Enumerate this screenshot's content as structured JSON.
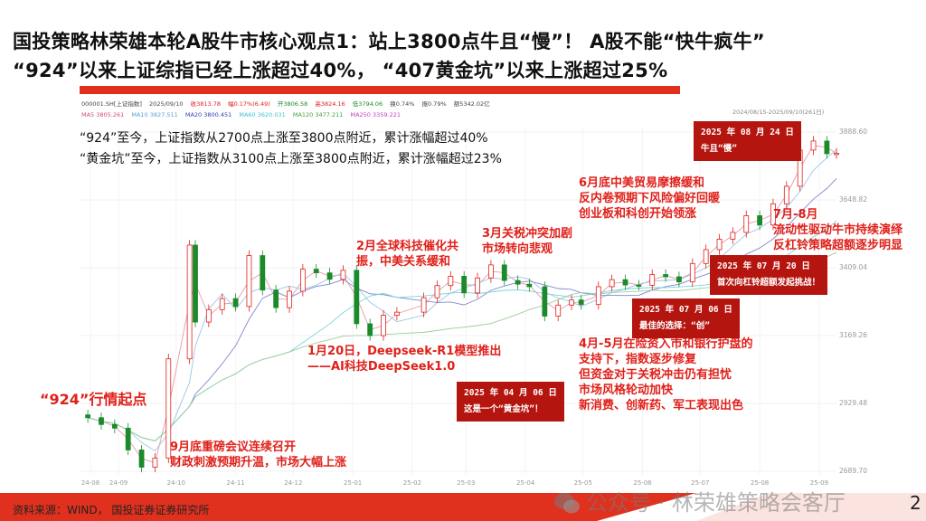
{
  "title": {
    "line1": "国投策略林荣雄本轮A股牛市核心观点1：站上3800点牛且“慢”！ A股不能“快牛疯牛”",
    "line2": "“924”以来上证综指已经上涨超过40%，  “407黄金坑”以来上涨超过25%"
  },
  "quote_info": {
    "row1": [
      "000001.SH[上证指数]",
      "2025/09/10",
      "收3813.78",
      "幅0.17%(6.49)",
      "开3806.58",
      "高3824.16",
      "低3794.06",
      "换0.74%",
      "振0.79%",
      "额5342.02亿"
    ],
    "row2": [
      "MA5 3805.261",
      "MA10 3827.511",
      "MA20 3800.451",
      "MA60 3620.031",
      "MA120 3477.211",
      "MA250 3359.221"
    ],
    "range": "2024/08/15-2025/09/10(261日)"
  },
  "summary": {
    "line1": "“924”至今，上证指数从2700点上涨至3800点附近，累计涨幅超过40%",
    "line2": "“黄金坑”至今，上证指数从3100点上涨至3800点附近，累计涨幅超过23%"
  },
  "annotations": {
    "start_924": "“924”行情起点",
    "sep": [
      "9月底重磅会议连续召开",
      "财政刺激预期升温，市场大幅上涨"
    ],
    "jan": [
      "1月20日，Deepseek-R1模型推出",
      "——AI科技DeepSeek1.0"
    ],
    "feb": [
      "2月全球科技催化共",
      "振，中美关系缓和"
    ],
    "mar": [
      "3月关税冲突加剧",
      "市场转向悲观"
    ],
    "apr_may": [
      "4月-5月在险资入市和银行护盘的",
      "支持下，指数逐步修复",
      "但资金对于关税冲击仍有担忧",
      "市场风格轮动加快",
      "新消费、创新药、军工表现出色"
    ],
    "jun": [
      "6月底中美贸易摩擦缓和",
      "反内卷预期下风险偏好回暖",
      "创业板和科创开始领涨"
    ],
    "jul_aug": [
      "7月-8月",
      "流动性驱动牛市持续演绎",
      "反杠铃策略超额逐步明显"
    ]
  },
  "boxes": {
    "b0406": [
      "2025 年 04 月 06 日",
      "这是一个“黄金坑”！"
    ],
    "b0706": [
      "2025 年 07 月 06 日",
      "最佳的选择：“创”"
    ],
    "b0720": [
      "2025 年 07 月 20 日",
      "首次向杠铃超额发起挑战！"
    ],
    "b0824": [
      "2025 年 08 月 24 日",
      "牛且“慢”"
    ]
  },
  "footer": {
    "source": "资料来源：WIND，  国投证券证券研究所",
    "page": "2",
    "watermark": "公众号 · 林荣雄策略会客厅"
  },
  "colors": {
    "up": "#e0201a",
    "down": "#1a8a2a",
    "accent": "#e0311f",
    "box": "#b5150f"
  },
  "chart_data": {
    "type": "candlestick",
    "title": "000001.SH[上证指数]",
    "ylim": [
      2689.7,
      3888.6
    ],
    "yticks": [
      "3888.60",
      "3648.82",
      "3409.04",
      "3169.26",
      "2929.48",
      "2689.70"
    ],
    "xticks": [
      "24-08",
      "24-09",
      "24-10",
      "24-11",
      "24-12",
      "25-01",
      "25-02",
      "25-03",
      "25-04",
      "25-05",
      "25-06",
      "25-07",
      "25-08",
      "25-09"
    ],
    "grid": true,
    "x": [
      "2024-08-16",
      "2024-08-23",
      "2024-08-30",
      "2024-09-06",
      "2024-09-13",
      "2024-09-20",
      "2024-09-27",
      "2024-10-08",
      "2024-10-11",
      "2024-10-18",
      "2024-10-25",
      "2024-11-01",
      "2024-11-08",
      "2024-11-15",
      "2024-11-22",
      "2024-11-29",
      "2024-12-06",
      "2024-12-13",
      "2024-12-20",
      "2024-12-27",
      "2025-01-03",
      "2025-01-10",
      "2025-01-17",
      "2025-01-24",
      "2025-02-07",
      "2025-02-14",
      "2025-02-21",
      "2025-02-28",
      "2025-03-07",
      "2025-03-14",
      "2025-03-21",
      "2025-03-28",
      "2025-04-03",
      "2025-04-11",
      "2025-04-18",
      "2025-04-25",
      "2025-04-30",
      "2025-05-09",
      "2025-05-16",
      "2025-05-23",
      "2025-05-30",
      "2025-06-06",
      "2025-06-13",
      "2025-06-20",
      "2025-06-27",
      "2025-07-04",
      "2025-07-11",
      "2025-07-18",
      "2025-07-25",
      "2025-08-01",
      "2025-08-08",
      "2025-08-15",
      "2025-08-22",
      "2025-08-29",
      "2025-09-05",
      "2025-09-10"
    ],
    "close": [
      2879,
      2855,
      2842,
      2765,
      2704,
      2736,
      3087,
      3489,
      3217,
      3261,
      3300,
      3272,
      3452,
      3330,
      3268,
      3326,
      3404,
      3391,
      3368,
      3400,
      3211,
      3169,
      3241,
      3252,
      3303,
      3346,
      3379,
      3320,
      3373,
      3419,
      3364,
      3351,
      3342,
      3238,
      3277,
      3295,
      3279,
      3342,
      3367,
      3348,
      3347,
      3385,
      3377,
      3359,
      3424,
      3473,
      3510,
      3534,
      3593,
      3560,
      3635,
      3697,
      3825,
      3857,
      3812,
      3813.78
    ]
  }
}
